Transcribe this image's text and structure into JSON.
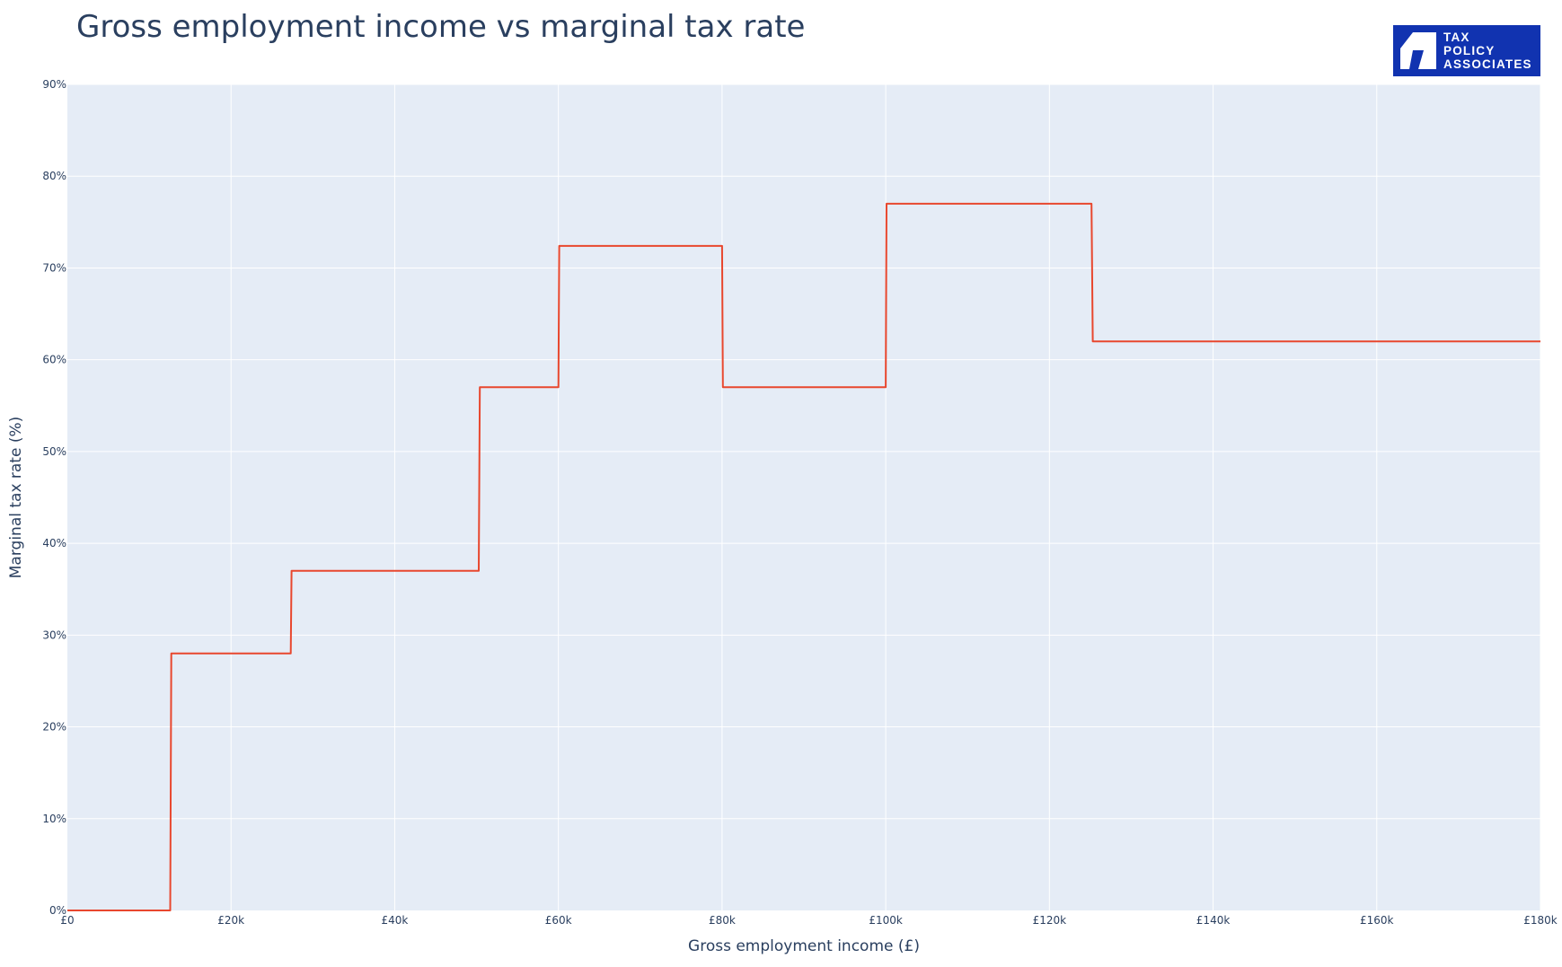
{
  "chart_data": {
    "type": "line",
    "title": "Gross employment income vs marginal tax rate",
    "xlabel": "Gross employment income (£)",
    "ylabel": "Marginal tax rate (%)",
    "xlim": [
      0,
      180000
    ],
    "ylim": [
      0,
      90
    ],
    "x_ticks": [
      {
        "value": 0,
        "label": "£0"
      },
      {
        "value": 20000,
        "label": "£20k"
      },
      {
        "value": 40000,
        "label": "£40k"
      },
      {
        "value": 60000,
        "label": "£60k"
      },
      {
        "value": 80000,
        "label": "£80k"
      },
      {
        "value": 100000,
        "label": "£100k"
      },
      {
        "value": 120000,
        "label": "£120k"
      },
      {
        "value": 140000,
        "label": "£140k"
      },
      {
        "value": 160000,
        "label": "£160k"
      },
      {
        "value": 180000,
        "label": "£180k"
      }
    ],
    "y_ticks": [
      {
        "value": 0,
        "label": "0%"
      },
      {
        "value": 10,
        "label": "10%"
      },
      {
        "value": 20,
        "label": "20%"
      },
      {
        "value": 30,
        "label": "30%"
      },
      {
        "value": 40,
        "label": "40%"
      },
      {
        "value": 50,
        "label": "50%"
      },
      {
        "value": 60,
        "label": "60%"
      },
      {
        "value": 70,
        "label": "70%"
      },
      {
        "value": 80,
        "label": "80%"
      },
      {
        "value": 90,
        "label": "90%"
      }
    ],
    "grid": true,
    "series": [
      {
        "color": "#e8472e",
        "points": [
          [
            0,
            0
          ],
          [
            12570,
            0
          ],
          [
            12700,
            28
          ],
          [
            27300,
            28
          ],
          [
            27400,
            37
          ],
          [
            50270,
            37
          ],
          [
            50400,
            57
          ],
          [
            60000,
            57
          ],
          [
            60100,
            72.4
          ],
          [
            80000,
            72.4
          ],
          [
            80100,
            57
          ],
          [
            100000,
            57
          ],
          [
            100100,
            77
          ],
          [
            125140,
            77
          ],
          [
            125300,
            62
          ],
          [
            180000,
            62
          ]
        ]
      }
    ]
  },
  "logo": {
    "lines": [
      "TAX",
      "POLICY",
      "ASSOCIATES"
    ],
    "background": "#1133b0"
  },
  "colors": {
    "plot_background": "#e5ecf6",
    "grid": "#ffffff",
    "text": "#2a3f5f",
    "line": "#e8472e"
  }
}
